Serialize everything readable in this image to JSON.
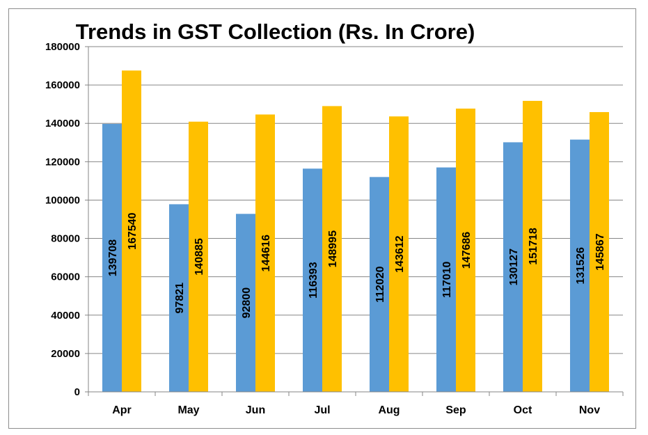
{
  "chart_data": {
    "type": "bar",
    "title": "Trends in GST Collection (Rs. In Crore)",
    "xlabel": "",
    "ylabel": "",
    "categories": [
      "Apr",
      "May",
      "Jun",
      "Jul",
      "Aug",
      "Sep",
      "Oct",
      "Nov"
    ],
    "series": [
      {
        "values": [
          139708,
          97821,
          92800,
          116393,
          112020,
          117010,
          130127,
          131526
        ],
        "color": "#5b9bd5"
      },
      {
        "values": [
          167540,
          140885,
          144616,
          148995,
          143612,
          147686,
          151718,
          145867
        ],
        "color": "#ffc000"
      }
    ],
    "ylim": [
      0,
      180000
    ],
    "yticks": [
      0,
      20000,
      40000,
      60000,
      80000,
      100000,
      120000,
      140000,
      160000,
      180000
    ],
    "grid": true,
    "legend": "none",
    "data_labels": "inside-rotated"
  }
}
